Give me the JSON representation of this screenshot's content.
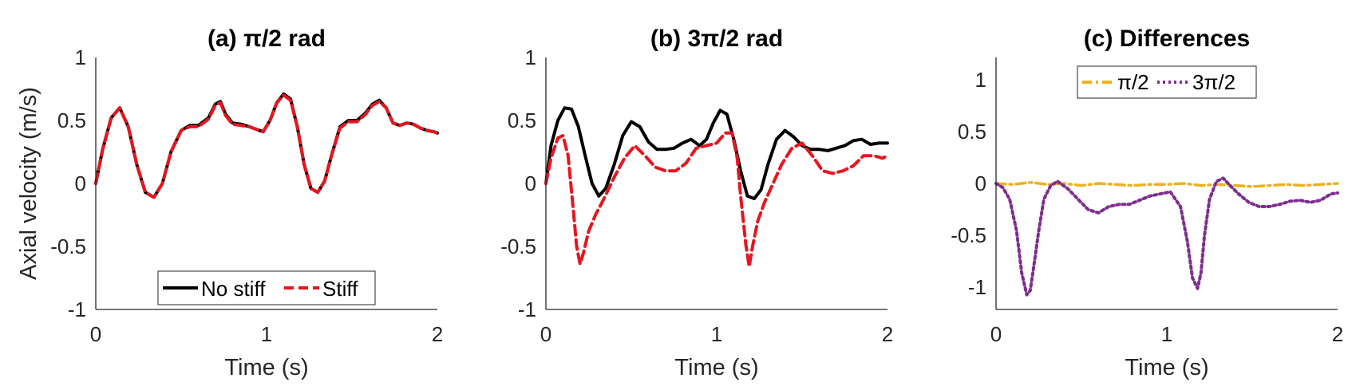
{
  "chart_data": [
    {
      "type": "line",
      "title": "(a) π/2 rad",
      "xlabel": "Time (s)",
      "ylabel": "Axial velocity (m/s)",
      "xlim": [
        0,
        2
      ],
      "ylim": [
        -1,
        1
      ],
      "xticks": [
        "0",
        "1",
        "2"
      ],
      "yticks": [
        "1",
        "0.5",
        "0",
        "-0.5",
        "-1"
      ],
      "legend": {
        "position": "bottom-center",
        "entries": [
          "No stiff",
          "Stiff"
        ]
      },
      "series": [
        {
          "name": "No stiff",
          "color": "#000000",
          "style": "solid",
          "x": [
            0,
            0.04,
            0.09,
            0.14,
            0.19,
            0.24,
            0.29,
            0.34,
            0.39,
            0.44,
            0.5,
            0.55,
            0.6,
            0.66,
            0.7,
            0.73,
            0.76,
            0.8,
            0.85,
            0.9,
            0.94,
            0.98,
            1.02,
            1.06,
            1.1,
            1.14,
            1.18,
            1.22,
            1.26,
            1.3,
            1.34,
            1.38,
            1.43,
            1.48,
            1.53,
            1.58,
            1.62,
            1.66,
            1.7,
            1.74,
            1.78,
            1.82,
            1.86,
            1.9,
            1.94,
            1.98,
            2.0
          ],
          "y": [
            0.0,
            0.27,
            0.52,
            0.6,
            0.45,
            0.15,
            -0.07,
            -0.11,
            0.0,
            0.25,
            0.42,
            0.46,
            0.46,
            0.52,
            0.63,
            0.65,
            0.55,
            0.48,
            0.47,
            0.45,
            0.43,
            0.41,
            0.5,
            0.64,
            0.71,
            0.67,
            0.45,
            0.15,
            -0.04,
            -0.07,
            0.02,
            0.22,
            0.45,
            0.5,
            0.5,
            0.56,
            0.63,
            0.66,
            0.6,
            0.48,
            0.46,
            0.48,
            0.47,
            0.44,
            0.42,
            0.41,
            0.4
          ]
        },
        {
          "name": "Stiff",
          "color": "#e8141e",
          "style": "dashed",
          "x": [
            0,
            0.04,
            0.09,
            0.14,
            0.19,
            0.24,
            0.29,
            0.34,
            0.39,
            0.44,
            0.5,
            0.55,
            0.6,
            0.66,
            0.7,
            0.73,
            0.76,
            0.8,
            0.85,
            0.9,
            0.94,
            0.98,
            1.02,
            1.06,
            1.1,
            1.14,
            1.18,
            1.22,
            1.26,
            1.3,
            1.34,
            1.38,
            1.43,
            1.48,
            1.53,
            1.58,
            1.62,
            1.66,
            1.7,
            1.74,
            1.78,
            1.82,
            1.86,
            1.9,
            1.94,
            1.98,
            2.0
          ],
          "y": [
            0.0,
            0.27,
            0.52,
            0.6,
            0.45,
            0.15,
            -0.07,
            -0.11,
            0.0,
            0.25,
            0.42,
            0.45,
            0.45,
            0.51,
            0.62,
            0.64,
            0.54,
            0.47,
            0.46,
            0.45,
            0.43,
            0.41,
            0.5,
            0.64,
            0.7,
            0.66,
            0.45,
            0.15,
            -0.04,
            -0.07,
            0.02,
            0.22,
            0.44,
            0.49,
            0.49,
            0.55,
            0.62,
            0.65,
            0.6,
            0.48,
            0.46,
            0.48,
            0.47,
            0.44,
            0.42,
            0.41,
            0.4
          ]
        }
      ]
    },
    {
      "type": "line",
      "title": "(b) 3π/2 rad",
      "xlabel": "Time (s)",
      "ylabel": "",
      "xlim": [
        0,
        2
      ],
      "ylim": [
        -1,
        1
      ],
      "xticks": [
        "0",
        "1",
        "2"
      ],
      "yticks": [
        "1",
        "0.5",
        "0",
        "-0.5",
        "-1"
      ],
      "series": [
        {
          "name": "No stiff",
          "color": "#000000",
          "style": "solid",
          "x": [
            0,
            0.03,
            0.07,
            0.11,
            0.15,
            0.19,
            0.23,
            0.27,
            0.31,
            0.35,
            0.4,
            0.45,
            0.5,
            0.55,
            0.6,
            0.65,
            0.7,
            0.75,
            0.8,
            0.85,
            0.9,
            0.94,
            0.98,
            1.02,
            1.06,
            1.1,
            1.14,
            1.18,
            1.22,
            1.26,
            1.3,
            1.35,
            1.4,
            1.45,
            1.5,
            1.55,
            1.6,
            1.65,
            1.7,
            1.75,
            1.8,
            1.85,
            1.9,
            1.95,
            2.0
          ],
          "y": [
            0.0,
            0.3,
            0.5,
            0.6,
            0.59,
            0.45,
            0.22,
            0.0,
            -0.1,
            -0.04,
            0.15,
            0.38,
            0.49,
            0.45,
            0.33,
            0.27,
            0.27,
            0.28,
            0.32,
            0.35,
            0.3,
            0.35,
            0.48,
            0.58,
            0.55,
            0.35,
            0.1,
            -0.1,
            -0.12,
            -0.05,
            0.15,
            0.35,
            0.42,
            0.37,
            0.3,
            0.27,
            0.27,
            0.26,
            0.28,
            0.3,
            0.34,
            0.35,
            0.31,
            0.32,
            0.32
          ]
        },
        {
          "name": "Stiff",
          "color": "#e8141e",
          "style": "dashed",
          "x": [
            0,
            0.03,
            0.07,
            0.1,
            0.13,
            0.16,
            0.18,
            0.2,
            0.22,
            0.25,
            0.29,
            0.34,
            0.4,
            0.46,
            0.52,
            0.58,
            0.64,
            0.7,
            0.76,
            0.82,
            0.88,
            0.94,
            1.0,
            1.05,
            1.09,
            1.12,
            1.14,
            1.17,
            1.19,
            1.21,
            1.24,
            1.28,
            1.33,
            1.38,
            1.44,
            1.5,
            1.56,
            1.62,
            1.68,
            1.74,
            1.8,
            1.86,
            1.92,
            1.97,
            2.0
          ],
          "y": [
            0.0,
            0.2,
            0.36,
            0.38,
            0.22,
            -0.2,
            -0.5,
            -0.64,
            -0.55,
            -0.38,
            -0.25,
            -0.12,
            0.05,
            0.2,
            0.3,
            0.22,
            0.13,
            0.1,
            0.1,
            0.16,
            0.28,
            0.3,
            0.32,
            0.4,
            0.4,
            0.2,
            -0.1,
            -0.48,
            -0.66,
            -0.5,
            -0.3,
            -0.15,
            0.0,
            0.15,
            0.28,
            0.32,
            0.22,
            0.1,
            0.08,
            0.1,
            0.14,
            0.22,
            0.22,
            0.2,
            0.22
          ]
        }
      ]
    },
    {
      "type": "line",
      "title": "(c) Differences",
      "xlabel": "Time (s)",
      "ylabel": "",
      "xlim": [
        0,
        2
      ],
      "ylim": [
        -1.2,
        1.2
      ],
      "xticks": [
        "0",
        "1",
        "2"
      ],
      "yticks": [
        "1",
        "0.5",
        "0",
        "-0.5",
        "-1"
      ],
      "legend": {
        "position": "top-center",
        "entries": [
          "π/2",
          "3π/2"
        ]
      },
      "series": [
        {
          "name": "π/2",
          "color": "#edb120",
          "style": "dash-dot",
          "x": [
            0,
            0.1,
            0.2,
            0.3,
            0.4,
            0.5,
            0.6,
            0.7,
            0.8,
            0.9,
            1.0,
            1.1,
            1.2,
            1.3,
            1.4,
            1.5,
            1.6,
            1.7,
            1.8,
            1.9,
            2.0
          ],
          "y": [
            0.0,
            -0.01,
            0.01,
            -0.01,
            0.0,
            -0.02,
            0.0,
            -0.01,
            -0.02,
            -0.01,
            -0.01,
            0.0,
            -0.02,
            -0.01,
            -0.02,
            -0.03,
            -0.02,
            -0.01,
            -0.02,
            -0.01,
            0.0
          ]
        },
        {
          "name": "3π/2",
          "color": "#7e2f8e",
          "style": "dotted",
          "x": [
            0,
            0.04,
            0.08,
            0.12,
            0.15,
            0.18,
            0.2,
            0.22,
            0.25,
            0.28,
            0.32,
            0.36,
            0.42,
            0.48,
            0.54,
            0.6,
            0.66,
            0.72,
            0.78,
            0.84,
            0.9,
            0.96,
            1.02,
            1.08,
            1.12,
            1.15,
            1.18,
            1.2,
            1.22,
            1.25,
            1.29,
            1.33,
            1.37,
            1.42,
            1.48,
            1.54,
            1.6,
            1.66,
            1.72,
            1.78,
            1.84,
            1.9,
            1.96,
            2.0
          ],
          "y": [
            0.0,
            -0.04,
            -0.15,
            -0.45,
            -0.85,
            -1.06,
            -1.02,
            -0.8,
            -0.45,
            -0.15,
            -0.02,
            0.02,
            -0.05,
            -0.15,
            -0.25,
            -0.28,
            -0.22,
            -0.2,
            -0.2,
            -0.16,
            -0.12,
            -0.1,
            -0.08,
            -0.22,
            -0.55,
            -0.9,
            -1.0,
            -0.85,
            -0.5,
            -0.15,
            0.02,
            0.05,
            -0.02,
            -0.1,
            -0.18,
            -0.22,
            -0.22,
            -0.2,
            -0.17,
            -0.16,
            -0.18,
            -0.16,
            -0.1,
            -0.09
          ]
        }
      ]
    }
  ]
}
